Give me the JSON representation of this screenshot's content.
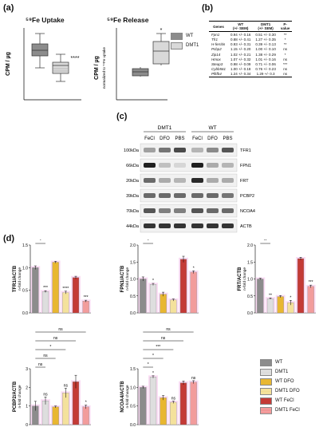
{
  "panels": {
    "a": "(a)",
    "b": "(b)",
    "c": "(c)",
    "d": "(d)"
  },
  "panel_a": {
    "uptake": {
      "title": "⁵⁹Fe Uptake",
      "ylabel": "CPM / µg",
      "sig": "****"
    },
    "release": {
      "title": "⁵⁹Fe Release",
      "ylabel": "CPM / µg",
      "ylabel2": "normalized to ⁵⁹Fe uptake",
      "sig": "*"
    },
    "legend": [
      {
        "name": "WT",
        "color": "#8c8c8c"
      },
      {
        "name": "DMT1",
        "color": "#d9d9d9"
      }
    ]
  },
  "table": {
    "headers": [
      "Genes",
      "WT\n(+/- SEM)",
      "DMT1\n(+/- SEM)",
      "P-\nvalue"
    ],
    "rows": [
      [
        "Fpn1",
        "0.94 +/- 0.16",
        "0.51 +/- 0.30",
        "**"
      ],
      [
        "Tfr1",
        "0.88 +/- 0.41",
        "1.27 +/- 0.35",
        "*"
      ],
      [
        "H-ferritin",
        "0.93 +/- 0.31",
        "0.39 +/- 0.13",
        "**"
      ],
      [
        "Pcbp2",
        "1.15 +/- 0.20",
        "1.00 +/- 0.10",
        "ns"
      ],
      [
        "Zip14",
        "1.02 +/- 0.21",
        "1.38 +/- 0.29",
        "*"
      ],
      [
        "Hmox",
        "1.07 +/- 0.32",
        "1.01 +/- 0.16",
        "ns"
      ],
      [
        "Steap3",
        "0.98 +/- 0.09",
        "0.71 +/- 0.06",
        "***"
      ],
      [
        "Cybb561",
        "1.00 +/- 0.18",
        "0.76 +/- 0.23",
        "ns"
      ],
      [
        "Pfkfb4",
        "1.24 +/- 0.34",
        "1.29 +/- 0.3",
        "ns"
      ]
    ]
  },
  "blot": {
    "groups": [
      "DMT1",
      "WT"
    ],
    "lanes": [
      "FeCl",
      "DFO",
      "PBS",
      "FeCl",
      "DFO",
      "PBS"
    ],
    "kda": [
      "100kDa",
      "66kDa",
      "20kDa",
      "39kDa",
      "70kDa",
      "44kDa"
    ],
    "proteins": [
      "TFR1",
      "FPN1",
      "FRT",
      "PCBP2",
      "NCOA4",
      "ACTB"
    ]
  },
  "colors": {
    "WT": "#8c8c8c",
    "DMT1": "#d9d9d9",
    "WT DFO": "#e8b731",
    "DMT1 DFO": "#f2dc8a",
    "WT FeCl": "#c43a36",
    "DMT1 FeCl": "#f08a8a",
    "glow": "#f8cdf0"
  },
  "legend_d": [
    "WT",
    "DMT1",
    "WT DFO",
    "DMT1 DFO",
    "WT FeCl",
    "DMT1 FeCl"
  ],
  "chart_data": [
    {
      "type": "bar",
      "ylabel": "TFR1/ACTB",
      "ylabel2": "n-fold change",
      "ylim": [
        0,
        1.5
      ],
      "ticks": [
        "0.0",
        "0.5",
        "1.0",
        "1.5"
      ],
      "categories": [
        "WT",
        "DMT1",
        "WT DFO",
        "DMT1 DFO",
        "WT FeCl",
        "DMT1 FeCl"
      ],
      "values": [
        1.0,
        0.47,
        1.12,
        0.45,
        0.78,
        0.26
      ],
      "errors": [
        0.04,
        0.02,
        0.02,
        0.03,
        0.03,
        0.02
      ],
      "labels": [
        "",
        "***",
        "",
        "****",
        "",
        "***"
      ],
      "brackets": [
        {
          "from": 0,
          "to": 1,
          "level": 0,
          "text": "*"
        },
        {
          "from": 0,
          "to": 2,
          "level": 1,
          "text": "*"
        },
        {
          "from": 0,
          "to": 3,
          "level": 2,
          "text": "ns"
        },
        {
          "from": 0,
          "to": 4,
          "level": 3,
          "text": "ns"
        },
        {
          "from": 0,
          "to": 5,
          "level": 4,
          "text": "*"
        }
      ]
    },
    {
      "type": "bar",
      "ylabel": "FPN1/ACTB",
      "ylabel2": "n-fold change",
      "ylim": [
        0,
        2.0
      ],
      "ticks": [
        "0.0",
        "0.5",
        "1.0",
        "1.5",
        "2.0"
      ],
      "categories": [
        "WT",
        "DMT1",
        "WT DFO",
        "DMT1 DFO",
        "WT FeCl",
        "DMT1 FeCl"
      ],
      "values": [
        1.0,
        0.84,
        0.55,
        0.38,
        1.58,
        1.2
      ],
      "errors": [
        0.06,
        0.03,
        0.06,
        0.03,
        0.09,
        0.04
      ],
      "labels": [
        "",
        "*",
        "",
        "",
        "",
        "*"
      ],
      "brackets": [
        {
          "from": 0,
          "to": 1,
          "level": 0,
          "text": "*"
        },
        {
          "from": 0,
          "to": 2,
          "level": 1,
          "text": "ns"
        },
        {
          "from": 0,
          "to": 3,
          "level": 2,
          "text": "*"
        },
        {
          "from": 0,
          "to": 4,
          "level": 3,
          "text": "****"
        },
        {
          "from": 0,
          "to": 5,
          "level": 4,
          "text": "****"
        }
      ]
    },
    {
      "type": "bar",
      "ylabel": "FRT/ACTB",
      "ylabel2": "n-fold change",
      "ylim": [
        0,
        2.0
      ],
      "ticks": [
        "0.0",
        "0.5",
        "1.0",
        "1.5",
        "2.0"
      ],
      "categories": [
        "WT",
        "DMT1",
        "WT DFO",
        "DMT1 DFO",
        "WT FeCl",
        "DMT1 FeCl"
      ],
      "values": [
        1.0,
        0.42,
        0.48,
        0.3,
        1.6,
        0.78
      ],
      "errors": [
        0.02,
        0.02,
        0.03,
        0.07,
        0.04,
        0.04
      ],
      "labels": [
        "",
        "**",
        "",
        "*",
        "",
        "***"
      ],
      "brackets": [
        {
          "from": 0,
          "to": 1,
          "level": 0,
          "text": "**"
        },
        {
          "from": 0,
          "to": 2,
          "level": 1,
          "text": "**"
        },
        {
          "from": 0,
          "to": 3,
          "level": 2,
          "text": "**"
        },
        {
          "from": 0,
          "to": 4,
          "level": 3,
          "text": "*"
        }
      ]
    },
    {
      "type": "bar",
      "ylabel": "PCBP2/ACTB",
      "ylabel2": "n-fold change",
      "ylim": [
        0,
        3
      ],
      "ticks": [
        "0",
        "1",
        "2",
        "3"
      ],
      "categories": [
        "WT",
        "DMT1",
        "WT DFO",
        "DMT1 DFO",
        "WT FeCl",
        "DMT1 FeCl"
      ],
      "values": [
        1.0,
        1.28,
        0.95,
        1.7,
        2.3,
        0.95
      ],
      "errors": [
        0.25,
        0.2,
        0.05,
        0.25,
        0.35,
        0.1
      ],
      "labels": [
        "",
        "ns",
        "",
        "ns",
        "",
        "*"
      ],
      "brackets": [
        {
          "from": 0,
          "to": 1,
          "level": 0,
          "text": "ns"
        },
        {
          "from": 0,
          "to": 2,
          "level": 1,
          "text": "ns"
        },
        {
          "from": 0,
          "to": 3,
          "level": 2,
          "text": "*"
        },
        {
          "from": 0,
          "to": 4,
          "level": 3,
          "text": "ns"
        },
        {
          "from": 0,
          "to": 5,
          "level": 4,
          "text": "ns"
        }
      ]
    },
    {
      "type": "bar",
      "ylabel": "NCOA4/ACTB",
      "ylabel2": "n-fold change",
      "ylim": [
        0,
        1.5
      ],
      "ticks": [
        "0.0",
        "0.5",
        "1.0",
        "1.5"
      ],
      "categories": [
        "WT",
        "DMT1",
        "WT DFO",
        "DMT1 DFO",
        "WT FeCl",
        "DMT1 FeCl"
      ],
      "values": [
        1.0,
        1.28,
        0.72,
        0.6,
        1.12,
        1.14
      ],
      "errors": [
        0.03,
        0.03,
        0.06,
        0.03,
        0.05,
        0.04
      ],
      "labels": [
        "",
        "*",
        "",
        "ns",
        "",
        "ns"
      ],
      "brackets": [
        {
          "from": 0,
          "to": 1,
          "level": 0,
          "text": "*"
        },
        {
          "from": 0,
          "to": 2,
          "level": 1,
          "text": "*"
        },
        {
          "from": 0,
          "to": 3,
          "level": 2,
          "text": "***"
        },
        {
          "from": 0,
          "to": 4,
          "level": 3,
          "text": "ns"
        },
        {
          "from": 0,
          "to": 5,
          "level": 4,
          "text": "ns"
        }
      ]
    }
  ]
}
